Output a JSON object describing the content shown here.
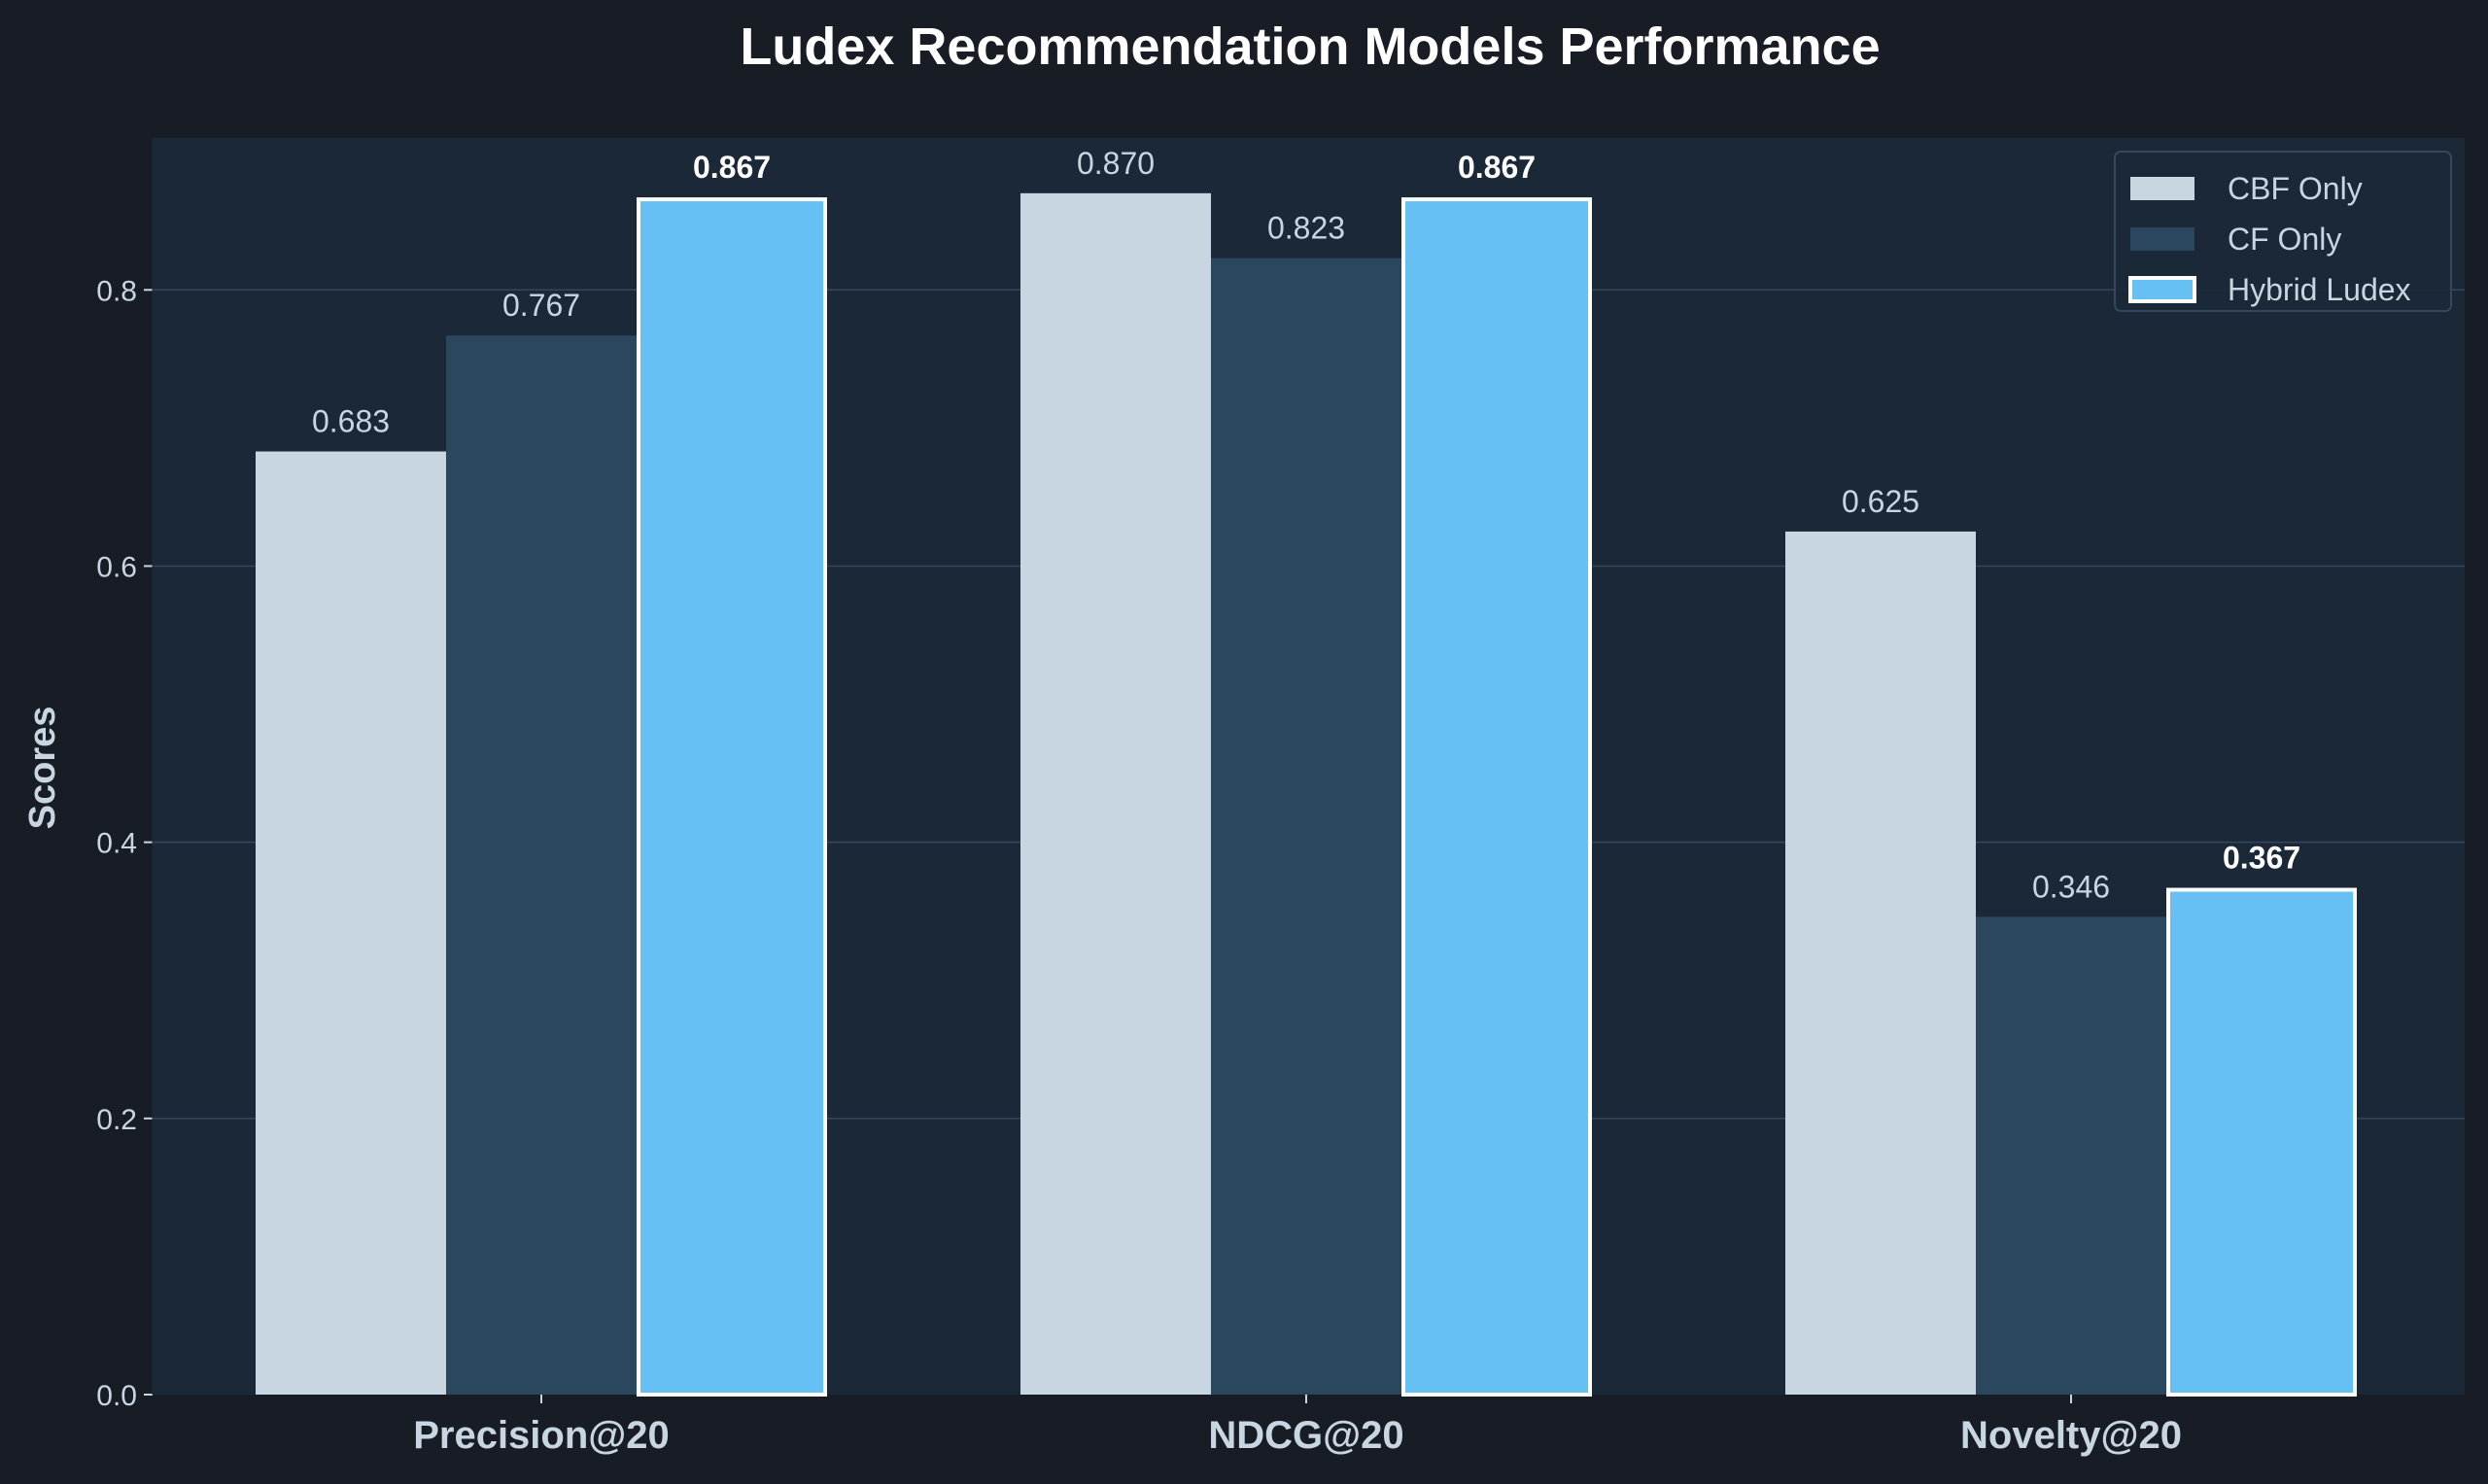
{
  "colors": {
    "figure_bg": "#181c24",
    "plot_bg": "#1b2838",
    "grid": "#33485c",
    "text": "#c8d6e2",
    "title": "#ffffff",
    "hybrid_edge": "#ffffff"
  },
  "chart_data": {
    "type": "bar",
    "title": "Ludex Recommendation Models Performance",
    "xlabel": "",
    "ylabel": "Scores",
    "ylim": [
      0,
      0.91
    ],
    "yticks": [
      "0.0",
      "0.2",
      "0.4",
      "0.6",
      "0.8"
    ],
    "categories": [
      "Precision@20",
      "NDCG@20",
      "Novelty@20"
    ],
    "grid": true,
    "legend_position": "top-right",
    "series": [
      {
        "name": "CBF Only",
        "values": [
          0.683,
          0.87,
          0.625
        ],
        "labels": [
          "0.683",
          "0.870",
          "0.625"
        ],
        "color": "#c8d6e2",
        "highlight": false
      },
      {
        "name": "CF Only",
        "values": [
          0.767,
          0.823,
          0.346
        ],
        "labels": [
          "0.767",
          "0.823",
          "0.346"
        ],
        "color": "#2a475e",
        "highlight": false
      },
      {
        "name": "Hybrid Ludex",
        "values": [
          0.867,
          0.867,
          0.367
        ],
        "labels": [
          "0.867",
          "0.867",
          "0.367"
        ],
        "color": "#66c0f4",
        "highlight": true
      }
    ]
  }
}
